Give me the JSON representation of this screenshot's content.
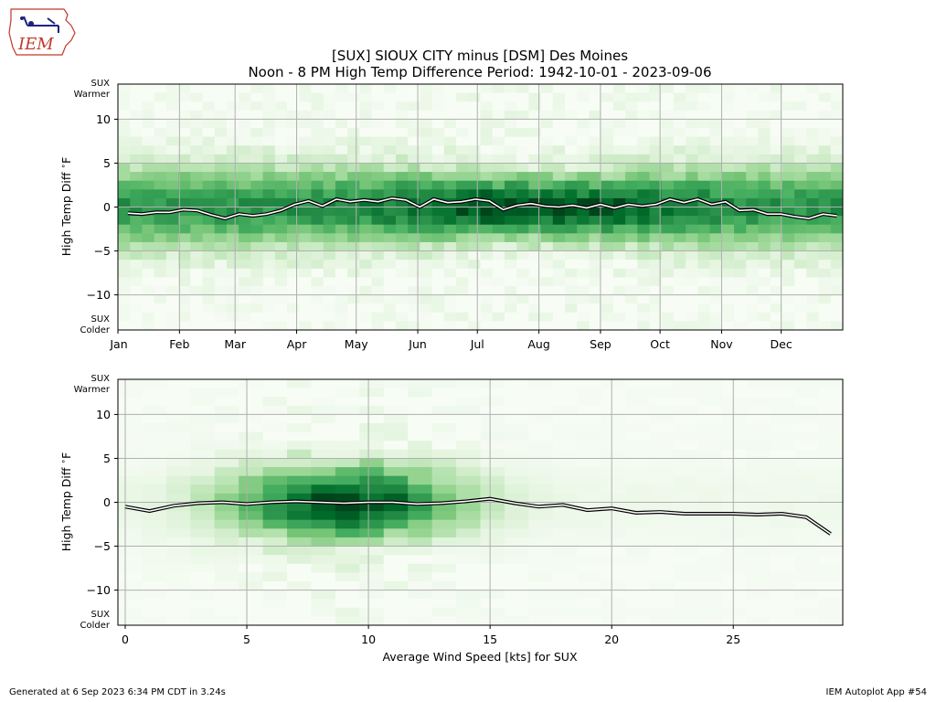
{
  "logo": {
    "text": "IEM"
  },
  "title": {
    "line1": "[SUX] SIOUX CITY minus [DSM] Des Moines",
    "line2": "Noon - 8 PM High Temp Difference Period: 1942-10-01 - 2023-09-06"
  },
  "footer": {
    "left": "Generated at 6 Sep 2023 6:34 PM CDT in 3.24s",
    "right": "IEM Autoplot App #54"
  },
  "colors": {
    "heat_low": "#f7fcf5",
    "heat_high": "#00441b",
    "line_outer": "#000000",
    "line_inner": "#ffffff",
    "grid": "#b0b0b0"
  },
  "chart_data": [
    {
      "type": "heatmap",
      "ylabel": "High Temp Diff $^\\circ$F",
      "xlabel": "",
      "ylim": [
        -14,
        14
      ],
      "grid": true,
      "y_ticks": [
        10,
        5,
        0,
        -5,
        -10
      ],
      "y_tick_labels": [
        "10",
        "5",
        "0",
        "−5",
        "−10"
      ],
      "x_tick_labels": [
        "Jan",
        "Feb",
        "Mar",
        "Apr",
        "May",
        "Jun",
        "Jul",
        "Aug",
        "Sep",
        "Oct",
        "Nov",
        "Dec"
      ],
      "x_ticks_day": [
        1,
        32,
        60,
        91,
        121,
        152,
        182,
        213,
        244,
        274,
        305,
        335
      ],
      "xlim_day": [
        1,
        366
      ],
      "top_label": [
        "SUX",
        "Warmer"
      ],
      "bottom_label": [
        "SUX",
        "Colder"
      ],
      "mean_line": {
        "x": [
          6,
          13,
          20,
          27,
          34,
          41,
          48,
          55,
          62,
          69,
          76,
          83,
          90,
          97,
          104,
          111,
          118,
          125,
          132,
          139,
          146,
          153,
          160,
          167,
          174,
          181,
          188,
          195,
          202,
          209,
          216,
          223,
          230,
          237,
          244,
          251,
          258,
          265,
          272,
          279,
          286,
          293,
          300,
          307,
          314,
          321,
          328,
          335,
          342,
          349,
          356,
          363
        ],
        "y": [
          -0.7,
          -0.8,
          -0.6,
          -0.6,
          -0.3,
          -0.4,
          -0.9,
          -1.3,
          -0.8,
          -1.0,
          -0.8,
          -0.4,
          0.3,
          0.7,
          0.1,
          0.9,
          0.6,
          0.8,
          0.6,
          1.0,
          0.8,
          0.0,
          0.9,
          0.5,
          0.6,
          0.9,
          0.7,
          -0.3,
          0.2,
          0.4,
          0.1,
          0.0,
          0.2,
          -0.1,
          0.3,
          -0.1,
          0.3,
          0.1,
          0.3,
          0.9,
          0.5,
          0.9,
          0.3,
          0.6,
          -0.4,
          -0.3,
          -0.8,
          -0.8,
          -1.1,
          -1.3,
          -0.8,
          -1.0
        ]
      }
    },
    {
      "type": "heatmap",
      "ylabel": "High Temp Diff $^\\circ$F",
      "xlabel": "Average Wind Speed [kts] for SUX",
      "ylim": [
        -14,
        14
      ],
      "xlim": [
        -0.3,
        29.5
      ],
      "grid": true,
      "x_ticks": [
        0,
        5,
        10,
        15,
        20,
        25
      ],
      "x_tick_labels": [
        "0",
        "5",
        "10",
        "15",
        "20",
        "25"
      ],
      "y_ticks": [
        10,
        5,
        0,
        -5,
        -10
      ],
      "y_tick_labels": [
        "10",
        "5",
        "0",
        "−5",
        "−10"
      ],
      "top_label": [
        "SUX",
        "Warmer"
      ],
      "bottom_label": [
        "SUX",
        "Colder"
      ],
      "mean_line": {
        "x": [
          0,
          1,
          2,
          3,
          4,
          5,
          6,
          7,
          8,
          9,
          10,
          11,
          12,
          13,
          14,
          15,
          16,
          17,
          18,
          19,
          20,
          21,
          22,
          23,
          24,
          25,
          26,
          27,
          28,
          29
        ],
        "y": [
          -0.5,
          -1.0,
          -0.4,
          -0.1,
          0.0,
          -0.2,
          0.0,
          0.1,
          0.0,
          -0.1,
          0.0,
          0.0,
          -0.2,
          -0.1,
          0.1,
          0.4,
          -0.1,
          -0.5,
          -0.3,
          -0.9,
          -0.7,
          -1.2,
          -1.1,
          -1.3,
          -1.3,
          -1.3,
          -1.4,
          -1.3,
          -1.7,
          -3.6
        ]
      }
    }
  ]
}
